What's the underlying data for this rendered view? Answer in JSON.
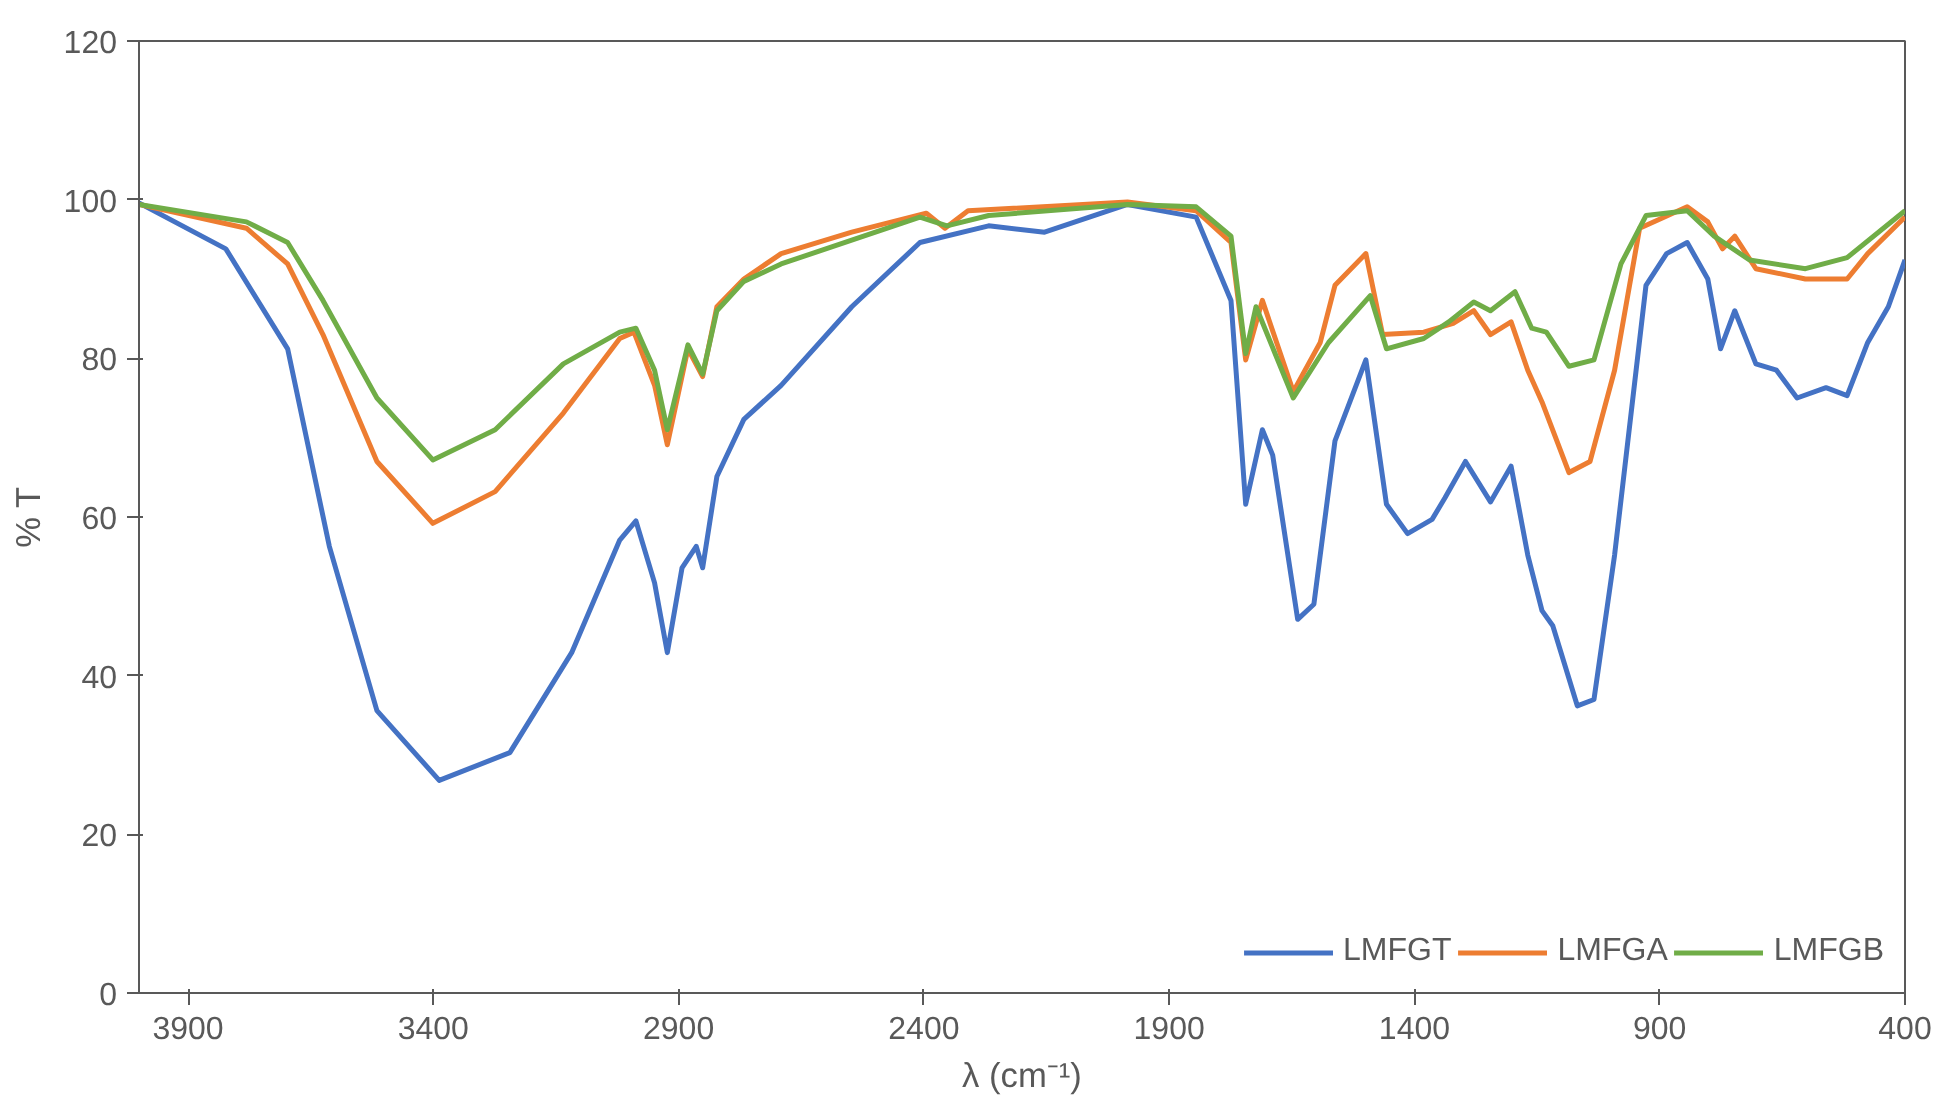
{
  "chart_data": {
    "type": "line",
    "xlabel": "λ (cm⁻¹)",
    "ylabel": "% T",
    "xlim": [
      4000,
      400
    ],
    "xticks": [
      3900,
      3400,
      2900,
      2400,
      1900,
      1400,
      900,
      400
    ],
    "ylim": [
      0,
      120
    ],
    "yticks": [
      0,
      20,
      40,
      60,
      80,
      100,
      120
    ],
    "grid": false,
    "legend": "bottom right",
    "marker": "none",
    "line_style": "solid",
    "series": [
      {
        "name": "LMFGT",
        "color": "#4472c4",
        "x": [
          4000,
          3823,
          3697,
          3612,
          3515,
          3388,
          3244,
          3118,
          3020,
          2987,
          2949,
          2923,
          2893,
          2864,
          2851,
          2822,
          2767,
          2691,
          2547,
          2408,
          2268,
          2154,
          1985,
          1845,
          1774,
          1744,
          1710,
          1689,
          1638,
          1605,
          1562,
          1499,
          1457,
          1414,
          1364,
          1338,
          1296,
          1245,
          1203,
          1169,
          1140,
          1118,
          1068,
          1034,
          992,
          928,
          886,
          844,
          802,
          776,
          747,
          704,
          662,
          620,
          561,
          518,
          476,
          434,
          400
        ],
        "values": [
          99.6,
          93.8,
          81.2,
          56.3,
          35.6,
          26.8,
          30.3,
          42.9,
          57.1,
          59.5,
          51.7,
          42.9,
          53.6,
          56.3,
          53.6,
          65.1,
          72.3,
          76.6,
          86.5,
          94.6,
          96.7,
          95.9,
          99.4,
          97.8,
          87.3,
          61.6,
          71.0,
          67.8,
          47.1,
          49.0,
          69.6,
          79.8,
          61.6,
          57.9,
          59.7,
          62.4,
          67.0,
          61.9,
          66.4,
          55.2,
          48.2,
          46.3,
          36.2,
          37.0,
          55.2,
          89.2,
          93.2,
          94.6,
          90.0,
          81.2,
          86.0,
          79.3,
          78.5,
          75.0,
          76.3,
          75.3,
          82.0,
          86.5,
          92.4
        ]
      },
      {
        "name": "LMFGA",
        "color": "#ed7d31",
        "x": [
          4000,
          3781,
          3697,
          3625,
          3515,
          3401,
          3274,
          3135,
          3020,
          2991,
          2949,
          2923,
          2881,
          2851,
          2822,
          2767,
          2691,
          2547,
          2395,
          2357,
          2310,
          1985,
          1845,
          1774,
          1744,
          1710,
          1647,
          1592,
          1562,
          1499,
          1465,
          1381,
          1321,
          1279,
          1245,
          1203,
          1169,
          1140,
          1085,
          1042,
          992,
          941,
          844,
          802,
          772,
          747,
          704,
          603,
          518,
          476,
          400
        ],
        "values": [
          99.4,
          96.4,
          91.9,
          83.0,
          67.0,
          59.2,
          63.2,
          73.1,
          82.5,
          83.3,
          76.6,
          69.1,
          81.2,
          77.7,
          86.5,
          90.0,
          93.2,
          95.9,
          98.3,
          96.4,
          98.6,
          99.7,
          98.6,
          94.6,
          79.8,
          87.3,
          75.8,
          82.0,
          89.2,
          93.2,
          83.0,
          83.3,
          84.4,
          86.0,
          83.0,
          84.6,
          78.5,
          74.5,
          65.6,
          67.0,
          78.5,
          96.4,
          99.1,
          97.2,
          93.8,
          95.4,
          91.3,
          90.0,
          90.0,
          93.2,
          97.8
        ]
      },
      {
        "name": "LMFGB",
        "color": "#70ad47",
        "x": [
          4000,
          3781,
          3697,
          3625,
          3515,
          3401,
          3274,
          3135,
          3020,
          2987,
          2949,
          2923,
          2881,
          2851,
          2822,
          2767,
          2691,
          2408,
          2353,
          2268,
          1985,
          1845,
          1774,
          1744,
          1723,
          1647,
          1575,
          1490,
          1457,
          1381,
          1330,
          1279,
          1245,
          1195,
          1161,
          1131,
          1085,
          1034,
          979,
          928,
          844,
          789,
          717,
          603,
          518,
          400
        ],
        "values": [
          99.4,
          97.2,
          94.6,
          87.3,
          75.0,
          67.2,
          71.0,
          79.3,
          83.3,
          83.8,
          78.5,
          71.0,
          81.7,
          78.0,
          86.0,
          89.7,
          91.9,
          97.8,
          96.7,
          98.0,
          99.4,
          99.1,
          95.4,
          80.6,
          86.5,
          75.0,
          82.0,
          87.9,
          81.2,
          82.5,
          84.6,
          87.1,
          86.0,
          88.4,
          83.8,
          83.3,
          79.0,
          79.8,
          91.9,
          98.0,
          98.6,
          95.4,
          92.4,
          91.3,
          92.7,
          98.6
        ]
      }
    ]
  }
}
